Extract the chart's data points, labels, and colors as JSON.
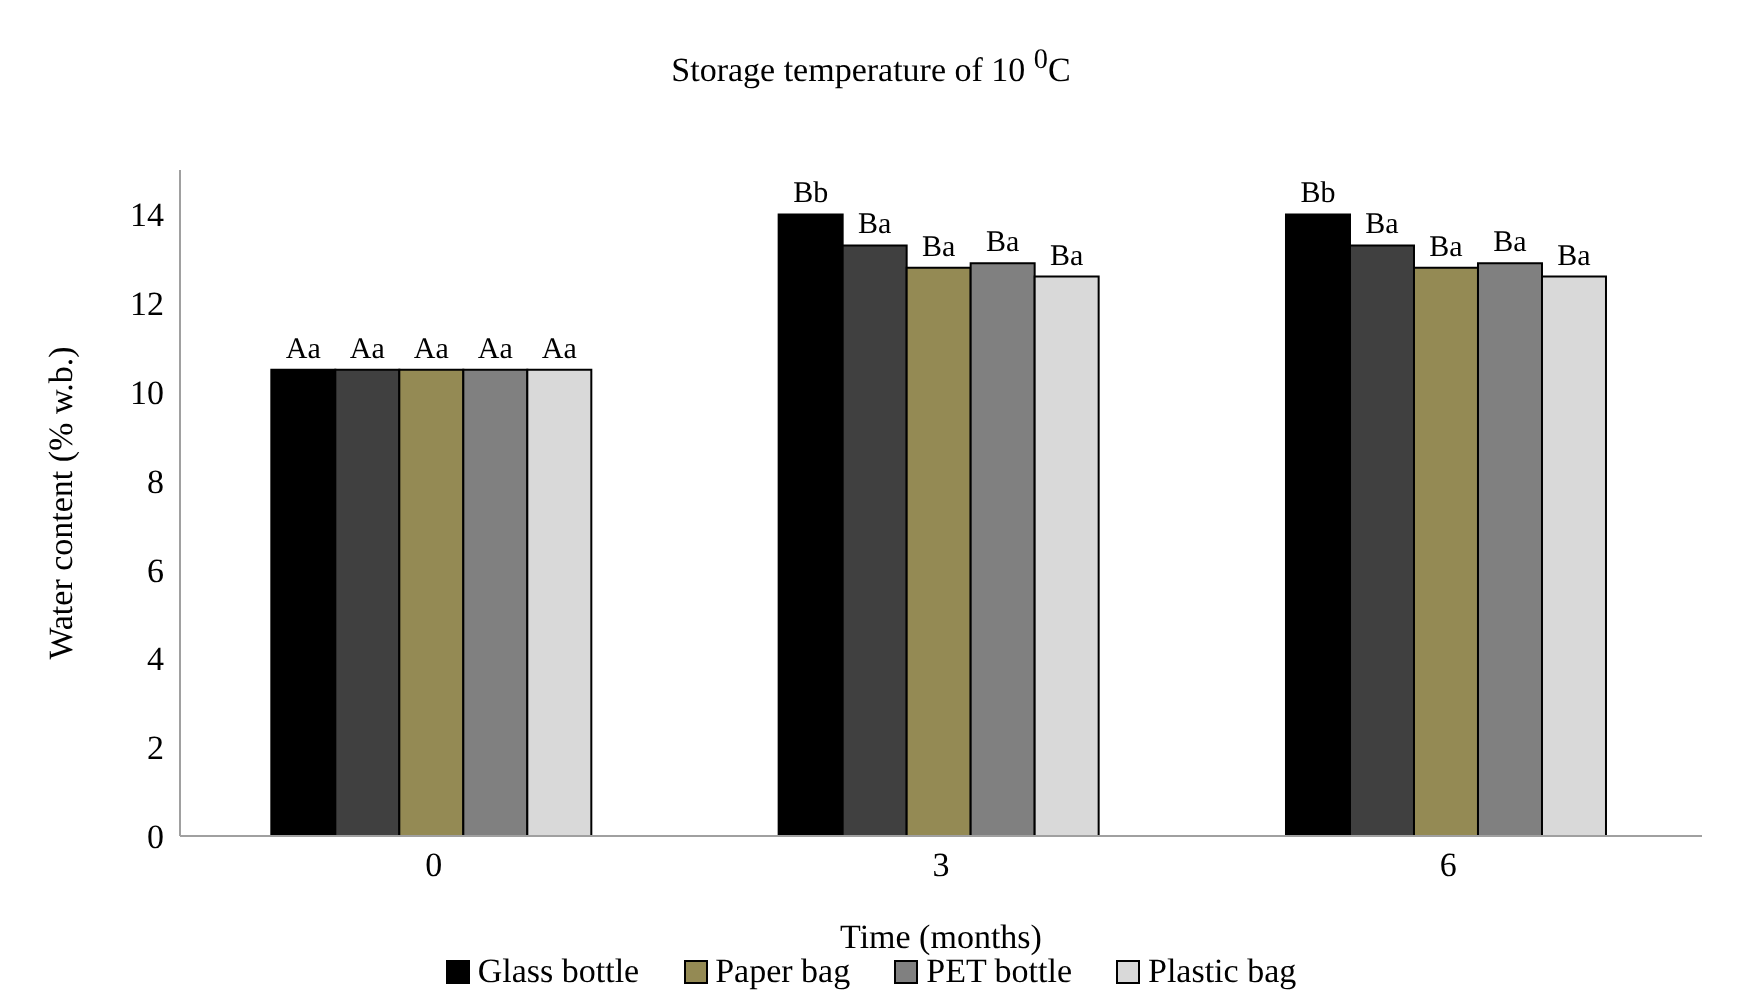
{
  "chart_data": {
    "type": "bar",
    "title": "Storage temperature of  10 $^{0}$C",
    "xlabel": "Time (months)",
    "ylabel": "Water content  (% w.b.)",
    "categories": [
      "0",
      "3",
      "6"
    ],
    "ylim": [
      0,
      15
    ],
    "yticks": [
      0,
      2,
      4,
      6,
      8,
      10,
      12,
      14
    ],
    "grid": false,
    "legend": "bottom",
    "series": [
      {
        "name": "Glass bottle",
        "color": "#000000",
        "values": [
          10.5,
          14.0,
          14.0
        ],
        "value_labels": [
          "Aa",
          "Bb",
          "Bb"
        ]
      },
      {
        "color": "#404040",
        "values": [
          10.5,
          13.3,
          13.3
        ],
        "value_labels": [
          "Aa",
          "Ba",
          "Ba"
        ]
      },
      {
        "name": "Paper bag",
        "color": "#948a54",
        "values": [
          10.5,
          12.8,
          12.8
        ],
        "value_labels": [
          "Aa",
          "Ba",
          "Ba"
        ]
      },
      {
        "name": "PET bottle",
        "color": "#808080",
        "values": [
          10.5,
          12.9,
          12.9
        ],
        "value_labels": [
          "Aa",
          "Ba",
          "Ba"
        ]
      },
      {
        "name": "Plastic bag",
        "color": "#d9d9d9",
        "values": [
          10.5,
          12.6,
          12.6
        ],
        "value_labels": [
          "Aa",
          "Ba",
          "Ba"
        ]
      }
    ]
  }
}
